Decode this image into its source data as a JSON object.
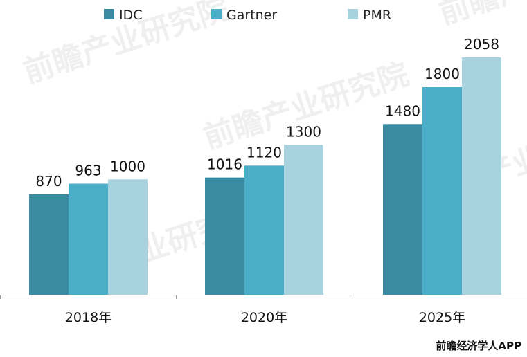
{
  "chart_data": {
    "type": "bar",
    "categories": [
      "2018年",
      "2020年",
      "2025年"
    ],
    "series": [
      {
        "name": "IDC",
        "values": [
          870,
          1016,
          1480
        ],
        "color": "#3a8aa1"
      },
      {
        "name": "Gartner",
        "values": [
          963,
          1120,
          1800
        ],
        "color": "#4aaec8"
      },
      {
        "name": "PMR",
        "values": [
          1000,
          1300,
          2058
        ],
        "color": "#a9d2df"
      }
    ],
    "title": "",
    "xlabel": "",
    "ylabel": "",
    "ylim": [
      0,
      2400
    ],
    "legend_position": "top",
    "grid": false,
    "axis_color": "#999999"
  },
  "watermark": "前瞻产业研究院",
  "source": "前瞻经济学人APP"
}
